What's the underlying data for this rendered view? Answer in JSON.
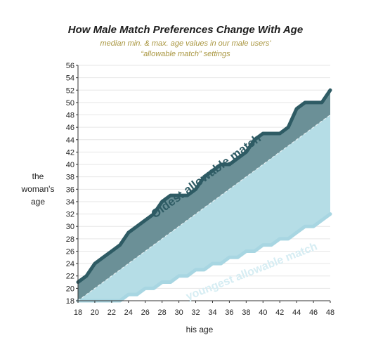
{
  "chart_data": {
    "type": "area",
    "title": "How Male Match Preferences Change With Age",
    "subtitle_lines": [
      "median min. & max. age values in our male users'",
      "“allowable match” settings"
    ],
    "xlabel": "his age",
    "ylabel_lines": [
      "the",
      "woman's",
      "age"
    ],
    "xlim": [
      18,
      48
    ],
    "ylim": [
      18,
      56
    ],
    "xticks": [
      18,
      20,
      22,
      24,
      26,
      28,
      30,
      32,
      34,
      36,
      38,
      40,
      42,
      44,
      46,
      48
    ],
    "yticks": [
      18,
      20,
      22,
      24,
      26,
      28,
      30,
      32,
      34,
      36,
      38,
      40,
      42,
      44,
      46,
      48,
      50,
      52,
      54,
      56
    ],
    "x": [
      18,
      19,
      20,
      21,
      22,
      23,
      24,
      25,
      26,
      27,
      28,
      29,
      30,
      31,
      32,
      33,
      34,
      35,
      36,
      37,
      38,
      39,
      40,
      41,
      42,
      43,
      44,
      45,
      46,
      47,
      48
    ],
    "series": [
      {
        "name": "Oldest allowable match",
        "color": "#2e5b64",
        "fill": "#6b9097",
        "values": [
          21,
          22,
          24,
          25,
          26,
          27,
          29,
          30,
          31,
          32,
          34,
          35,
          35,
          35,
          36,
          38,
          39,
          40,
          40,
          41,
          42,
          44,
          45,
          45,
          45,
          46,
          49,
          50,
          50,
          50,
          52
        ]
      },
      {
        "name": "youngest allowable match",
        "color": "#a8d6e2",
        "fill": "#b5dde6",
        "values": [
          18,
          18,
          18,
          18,
          18,
          18,
          19,
          19,
          20,
          20,
          21,
          21,
          22,
          22,
          23,
          23,
          24,
          24,
          25,
          25,
          26,
          26,
          27,
          27,
          28,
          28,
          29,
          30,
          30,
          31,
          32
        ]
      }
    ],
    "reference_line": {
      "type": "diagonal",
      "from": [
        18,
        18
      ],
      "to": [
        48,
        48
      ]
    },
    "grid": true
  }
}
